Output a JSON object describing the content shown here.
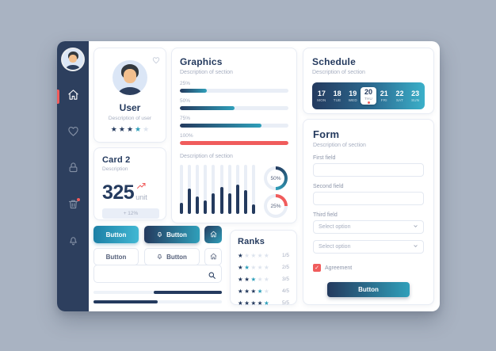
{
  "colors": {
    "background": "#a9b3c2",
    "panel": "#ffffff",
    "sidebar": "#2d3f5e",
    "navy": "#243a5e",
    "teal": "#2f9fba",
    "red": "#f05c5c",
    "track": "#e9eef6",
    "muted": "#a6aec0",
    "border": "#e3e8f1"
  },
  "sidebar": {
    "items": [
      {
        "icon": "home-icon",
        "active": true,
        "badge": false
      },
      {
        "icon": "heart-icon",
        "active": false,
        "badge": false
      },
      {
        "icon": "lock-icon",
        "active": false,
        "badge": false
      },
      {
        "icon": "trash-icon",
        "active": false,
        "badge": true
      },
      {
        "icon": "bell-icon",
        "active": false,
        "badge": false
      }
    ]
  },
  "user_card": {
    "title": "User",
    "description": "Description of user",
    "rating": {
      "filled": 4,
      "accent_last": true,
      "max": 5
    }
  },
  "card2": {
    "title": "Card 2",
    "description": "Description",
    "value": "325",
    "unit": "unit",
    "badge": "+ 12%"
  },
  "graphics": {
    "title": "Graphics",
    "description": "Description of section",
    "progress": [
      {
        "label": "25%",
        "value": 25,
        "style": "gradient"
      },
      {
        "label": "50%",
        "value": 50,
        "style": "gradient"
      },
      {
        "label": "75%",
        "value": 75,
        "style": "gradient"
      },
      {
        "label": "100%",
        "value": 100,
        "style": "red"
      }
    ],
    "chart": {
      "type": "bar",
      "description": "Description of section",
      "values": [
        22,
        52,
        35,
        27,
        42,
        55,
        42,
        60,
        48,
        20
      ],
      "ylim": [
        0,
        100
      ]
    },
    "donuts": [
      {
        "label": "50%",
        "value": 50,
        "style": "gradient"
      },
      {
        "label": "25%",
        "value": 25,
        "style": "red"
      }
    ]
  },
  "buttons": {
    "row1": [
      {
        "label": "Button",
        "style": "teal"
      },
      {
        "label": "Button",
        "style": "navy",
        "icon": "bell-icon"
      },
      {
        "label": "",
        "style": "gradient-square",
        "icon": "home-icon"
      }
    ],
    "row2": [
      {
        "label": "Button",
        "style": "outline"
      },
      {
        "label": "Button",
        "style": "outline",
        "icon": "bell-icon"
      },
      {
        "label": "",
        "style": "outline-square",
        "icon": "home-icon"
      }
    ]
  },
  "search": {
    "value": "",
    "icon": "search-icon"
  },
  "sliders": [
    {
      "fill_start": 47,
      "fill_end": 100
    },
    {
      "fill_start": 0,
      "fill_end": 50
    }
  ],
  "ranks": {
    "title": "Ranks",
    "rows": [
      {
        "filled": 1,
        "accent_last": false,
        "label": "1/5"
      },
      {
        "filled": 2,
        "accent_last": true,
        "label": "2/5"
      },
      {
        "filled": 3,
        "accent_last": true,
        "label": "3/5"
      },
      {
        "filled": 4,
        "accent_last": true,
        "label": "4/5"
      },
      {
        "filled": 5,
        "accent_last": true,
        "label": "5/5"
      }
    ]
  },
  "schedule": {
    "title": "Schedule",
    "description": "Description of section",
    "days": [
      {
        "num": "17",
        "name": "MON",
        "selected": false
      },
      {
        "num": "18",
        "name": "TUE",
        "selected": false
      },
      {
        "num": "19",
        "name": "WED",
        "selected": false
      },
      {
        "num": "20",
        "name": "THU",
        "selected": true
      },
      {
        "num": "21",
        "name": "FRI",
        "selected": false
      },
      {
        "num": "22",
        "name": "SAT",
        "selected": false
      },
      {
        "num": "23",
        "name": "SUN",
        "selected": false
      }
    ]
  },
  "form": {
    "title": "Form",
    "description": "Description of section",
    "first_label": "First field",
    "second_label": "Second field",
    "third_label": "Third field",
    "select_value": "Select option",
    "select2_value": "Select option",
    "agreement": "Agreement",
    "submit": "Button"
  }
}
